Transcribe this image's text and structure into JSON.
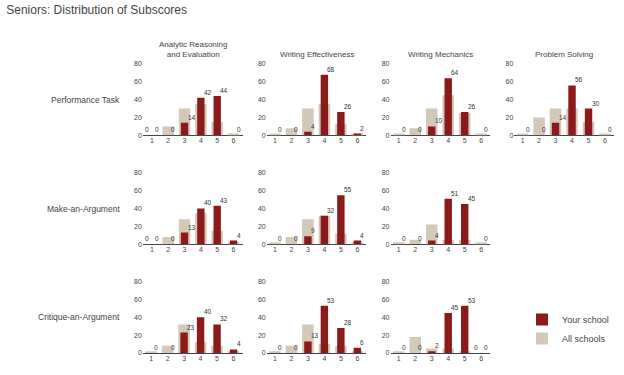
{
  "title": "Seniors: Distribution of Subscores",
  "legend": "lower right",
  "chart_data": [
    {
      "type": "bar",
      "title": "Analytic Reasoning\nand Evaluation",
      "ylabel": "Performance Task",
      "categories": [
        "1",
        "2",
        "3",
        "4",
        "5",
        "6"
      ],
      "series": [
        {
          "name": "Your school",
          "color": "#8B1A1A",
          "values": [
            0,
            0,
            14,
            42,
            44,
            0
          ]
        },
        {
          "name": "All schools",
          "color": "#D4C9B8",
          "values": [
            0,
            10,
            30,
            35,
            15,
            2
          ],
          "value_labels": [
            "0",
            null,
            null,
            null,
            null,
            null
          ]
        }
      ],
      "ylim": [
        0,
        80
      ],
      "yticks": [
        0,
        20,
        40,
        60,
        80
      ],
      "grid": false,
      "data_labels": true
    },
    {
      "type": "bar",
      "title": "Writing Effectiveness",
      "categories": [
        "1",
        "2",
        "3",
        "4",
        "5",
        "6"
      ],
      "series": [
        {
          "name": "Your school",
          "color": "#8B1A1A",
          "values": [
            0,
            0,
            4,
            68,
            26,
            2
          ]
        },
        {
          "name": "All schools",
          "color": "#D4C9B8",
          "values": [
            2,
            8,
            30,
            35,
            13,
            2
          ],
          "value_labels": [
            null,
            null,
            null,
            null,
            null,
            null
          ]
        }
      ],
      "ylim": [
        0,
        80
      ],
      "yticks": [
        0,
        20,
        40,
        60,
        80
      ],
      "grid": false,
      "data_labels": true
    },
    {
      "type": "bar",
      "title": "Writing Mechanics",
      "categories": [
        "1",
        "2",
        "3",
        "4",
        "5",
        "6"
      ],
      "series": [
        {
          "name": "Your school",
          "color": "#8B1A1A",
          "values": [
            0,
            0,
            10,
            64,
            26,
            0
          ]
        },
        {
          "name": "All schools",
          "color": "#D4C9B8",
          "values": [
            2,
            8,
            30,
            45,
            25,
            2
          ],
          "value_labels": [
            null,
            null,
            null,
            null,
            null,
            null
          ]
        }
      ],
      "ylim": [
        0,
        80
      ],
      "yticks": [
        0,
        20,
        40,
        60,
        80
      ],
      "grid": false,
      "data_labels": true
    },
    {
      "type": "bar",
      "title": "Problem Solving",
      "categories": [
        "1",
        "2",
        "3",
        "4",
        "5",
        "6"
      ],
      "series": [
        {
          "name": "Your school",
          "color": "#8B1A1A",
          "values": [
            0,
            0,
            14,
            56,
            30,
            0
          ]
        },
        {
          "name": "All schools",
          "color": "#D4C9B8",
          "values": [
            2,
            20,
            30,
            30,
            15,
            2
          ],
          "value_labels": [
            null,
            null,
            null,
            null,
            null,
            null
          ]
        }
      ],
      "ylim": [
        0,
        80
      ],
      "yticks": [
        0,
        20,
        40,
        60,
        80
      ],
      "grid": false,
      "data_labels": true
    },
    {
      "type": "bar",
      "ylabel": "Make-an-Argument",
      "categories": [
        "1",
        "2",
        "3",
        "4",
        "5",
        "6"
      ],
      "series": [
        {
          "name": "Your school",
          "color": "#8B1A1A",
          "values": [
            0,
            0,
            13,
            40,
            43,
            4
          ]
        },
        {
          "name": "All schools",
          "color": "#D4C9B8",
          "values": [
            0,
            8,
            28,
            35,
            15,
            2
          ],
          "value_labels": [
            "0",
            null,
            null,
            null,
            null,
            null
          ]
        }
      ],
      "ylim": [
        0,
        80
      ],
      "yticks": [
        0,
        20,
        40,
        60,
        80
      ],
      "grid": false,
      "data_labels": true
    },
    {
      "type": "bar",
      "categories": [
        "1",
        "2",
        "3",
        "4",
        "5",
        "6"
      ],
      "series": [
        {
          "name": "Your school",
          "color": "#8B1A1A",
          "values": [
            0,
            0,
            9,
            32,
            55,
            4
          ]
        },
        {
          "name": "All schools",
          "color": "#D4C9B8",
          "values": [
            2,
            8,
            28,
            32,
            12,
            2
          ],
          "value_labels": [
            null,
            null,
            null,
            null,
            null,
            null
          ]
        }
      ],
      "ylim": [
        0,
        80
      ],
      "yticks": [
        0,
        20,
        40,
        60,
        80
      ],
      "grid": false,
      "data_labels": true
    },
    {
      "type": "bar",
      "categories": [
        "1",
        "2",
        "3",
        "4",
        "5",
        "6"
      ],
      "series": [
        {
          "name": "Your school",
          "color": "#8B1A1A",
          "values": [
            0,
            0,
            4,
            51,
            45,
            0
          ]
        },
        {
          "name": "All schools",
          "color": "#D4C9B8",
          "values": [
            2,
            5,
            22,
            5,
            5,
            2
          ],
          "value_labels": [
            null,
            null,
            null,
            null,
            null,
            null
          ]
        }
      ],
      "ylim": [
        0,
        80
      ],
      "yticks": [
        0,
        20,
        40,
        60,
        80
      ],
      "grid": false,
      "data_labels": true
    },
    {
      "type": "bar",
      "ylabel": "Critique-an-Argument",
      "categories": [
        "1",
        "2",
        "3",
        "4",
        "5",
        "6"
      ],
      "series": [
        {
          "name": "Your school",
          "color": "#8B1A1A",
          "values": [
            0,
            0,
            23,
            40,
            32,
            4
          ]
        },
        {
          "name": "All schools",
          "color": "#D4C9B8",
          "values": [
            2,
            8,
            32,
            12,
            8,
            2
          ],
          "value_labels": [
            null,
            null,
            null,
            null,
            null,
            null
          ]
        }
      ],
      "ylim": [
        0,
        80
      ],
      "yticks": [
        0,
        20,
        40,
        60,
        80
      ],
      "grid": false,
      "data_labels": true
    },
    {
      "type": "bar",
      "categories": [
        "1",
        "2",
        "3",
        "4",
        "5",
        "6"
      ],
      "series": [
        {
          "name": "Your school",
          "color": "#8B1A1A",
          "values": [
            0,
            0,
            13,
            53,
            28,
            6
          ]
        },
        {
          "name": "All schools",
          "color": "#D4C9B8",
          "values": [
            2,
            8,
            32,
            10,
            8,
            2
          ],
          "value_labels": [
            null,
            null,
            null,
            null,
            null,
            null
          ]
        }
      ],
      "ylim": [
        0,
        80
      ],
      "yticks": [
        0,
        20,
        40,
        60,
        80
      ],
      "grid": false,
      "data_labels": true
    },
    {
      "type": "bar",
      "categories": [
        "1",
        "2",
        "3",
        "4",
        "5",
        "6"
      ],
      "series": [
        {
          "name": "Your school",
          "color": "#8B1A1A",
          "values": [
            0,
            0,
            2,
            45,
            53,
            0
          ]
        },
        {
          "name": "All schools",
          "color": "#D4C9B8",
          "values": [
            2,
            18,
            5,
            5,
            2,
            0
          ],
          "value_labels": [
            null,
            null,
            null,
            null,
            null,
            "0"
          ]
        }
      ],
      "ylim": [
        0,
        80
      ],
      "yticks": [
        0,
        20,
        40,
        60,
        80
      ],
      "grid": false,
      "data_labels": true
    }
  ]
}
